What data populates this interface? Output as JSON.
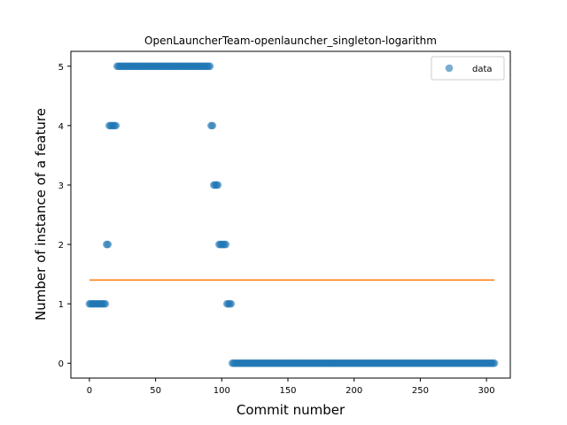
{
  "chart_data": {
    "type": "scatter",
    "title": "OpenLauncherTeam-openlauncher_singleton-logarithm",
    "xlabel": "Commit number",
    "ylabel": "Number of instance of a feature",
    "xlim": [
      -14,
      318
    ],
    "ylim": [
      -0.25,
      5.25
    ],
    "xticks": [
      0,
      50,
      100,
      150,
      200,
      250,
      300
    ],
    "yticks": [
      0,
      1,
      2,
      3,
      4,
      5
    ],
    "grid": false,
    "legend": {
      "placement": "top-right",
      "entries": [
        "data"
      ]
    },
    "colors": {
      "data": "#1f77b4",
      "fit": "#ff7f0e"
    },
    "series": [
      {
        "name": "data",
        "kind": "scatter",
        "runs": [
          {
            "x_start": 0,
            "x_end": 12,
            "y": 1
          },
          {
            "x_start": 13,
            "x_end": 14,
            "y": 2
          },
          {
            "x_start": 15,
            "x_end": 20,
            "y": 4
          },
          {
            "x_start": 21,
            "x_end": 91,
            "y": 5
          },
          {
            "x_start": 92,
            "x_end": 93,
            "y": 4
          },
          {
            "x_start": 94,
            "x_end": 97,
            "y": 3
          },
          {
            "x_start": 98,
            "x_end": 103,
            "y": 2
          },
          {
            "x_start": 104,
            "x_end": 107,
            "y": 1
          },
          {
            "x_start": 108,
            "x_end": 306,
            "y": 0
          }
        ]
      },
      {
        "name": "",
        "kind": "line",
        "x": [
          0,
          306
        ],
        "y": [
          1.4,
          1.4
        ]
      }
    ]
  }
}
